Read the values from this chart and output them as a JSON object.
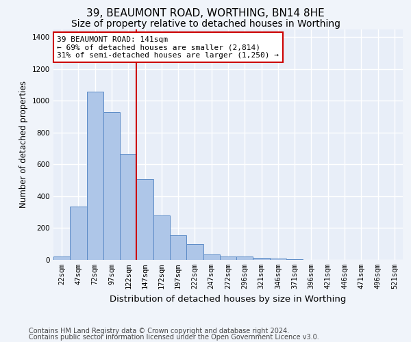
{
  "title": "39, BEAUMONT ROAD, WORTHING, BN14 8HE",
  "subtitle": "Size of property relative to detached houses in Worthing",
  "xlabel": "Distribution of detached houses by size in Worthing",
  "ylabel": "Number of detached properties",
  "categories": [
    "22sqm",
    "47sqm",
    "72sqm",
    "97sqm",
    "122sqm",
    "147sqm",
    "172sqm",
    "197sqm",
    "222sqm",
    "247sqm",
    "272sqm",
    "296sqm",
    "321sqm",
    "346sqm",
    "371sqm",
    "396sqm",
    "421sqm",
    "446sqm",
    "471sqm",
    "496sqm",
    "521sqm"
  ],
  "values": [
    20,
    335,
    1055,
    930,
    665,
    505,
    280,
    155,
    100,
    35,
    20,
    20,
    15,
    10,
    5,
    0,
    0,
    0,
    0,
    0,
    0
  ],
  "bar_color": "#aec6e8",
  "bar_edge_color": "#5a8ac6",
  "bar_edge_width": 0.7,
  "highlight_index": 5,
  "highlight_line_color": "#cc0000",
  "annotation_text": "39 BEAUMONT ROAD: 141sqm\n← 69% of detached houses are smaller (2,814)\n31% of semi-detached houses are larger (1,250) →",
  "annotation_box_edge_color": "#cc0000",
  "annotation_box_face_color": "#ffffff",
  "ylim": [
    0,
    1450
  ],
  "background_color": "#f0f4fa",
  "plot_bg_color": "#e8eef8",
  "grid_color": "#ffffff",
  "footer_line1": "Contains HM Land Registry data © Crown copyright and database right 2024.",
  "footer_line2": "Contains public sector information licensed under the Open Government Licence v3.0.",
  "title_fontsize": 11,
  "subtitle_fontsize": 10,
  "annotation_fontsize": 8,
  "tick_fontsize": 7.5,
  "ylabel_fontsize": 8.5,
  "xlabel_fontsize": 9.5,
  "footer_fontsize": 7
}
